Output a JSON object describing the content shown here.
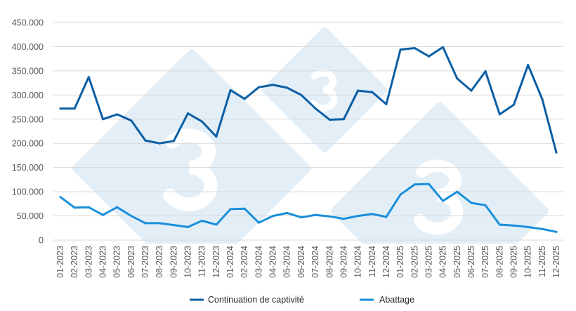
{
  "chart_data": {
    "type": "line",
    "title": "",
    "xlabel": "",
    "ylabel": "",
    "ylim": [
      0,
      450000
    ],
    "yticks": [
      0,
      50000,
      100000,
      150000,
      200000,
      250000,
      300000,
      350000,
      400000,
      450000
    ],
    "ytick_labels": [
      "0",
      "50.000",
      "100.000",
      "150.000",
      "200.000",
      "250.000",
      "300.000",
      "350.000",
      "400.000",
      "450.000"
    ],
    "grid": true,
    "legend_position": "bottom",
    "categories": [
      "01-2023",
      "02-2023",
      "03-2023",
      "04-2023",
      "05-2023",
      "06-2023",
      "07-2023",
      "08-2023",
      "09-2023",
      "10-2023",
      "11-2023",
      "12-2023",
      "01-2024",
      "02-2024",
      "03-2024",
      "04-2024",
      "05-2024",
      "06-2024",
      "07-2024",
      "08-2024",
      "09-2024",
      "10-2024",
      "11-2024",
      "12-2024",
      "01-2025",
      "02-2025",
      "03-2025",
      "04-2025",
      "05-2025",
      "06-2025",
      "07-2025",
      "08-2025",
      "09-2025",
      "10-2025",
      "11-2025",
      "12-2025"
    ],
    "series": [
      {
        "name": "Continuation de captivité",
        "color": "#0b5fa5",
        "values": [
          272000,
          272000,
          337000,
          250000,
          260000,
          247000,
          206000,
          200000,
          205000,
          262000,
          245000,
          214000,
          310000,
          292000,
          316000,
          321000,
          315000,
          300000,
          272000,
          249000,
          250000,
          309000,
          306000,
          281000,
          394000,
          397000,
          380000,
          399000,
          334000,
          309000,
          349000,
          260000,
          280000,
          362000,
          292000,
          181000
        ]
      },
      {
        "name": "Abattage",
        "color": "#1a8fdb",
        "values": [
          89000,
          67000,
          68000,
          52000,
          68000,
          50000,
          35000,
          35000,
          31000,
          27000,
          40000,
          32000,
          64000,
          65000,
          36000,
          50000,
          56000,
          47000,
          52000,
          49000,
          44000,
          50000,
          54000,
          48000,
          94000,
          115000,
          116000,
          81000,
          100000,
          77000,
          72000,
          32000,
          30000,
          27000,
          23000,
          17000
        ]
      }
    ]
  }
}
